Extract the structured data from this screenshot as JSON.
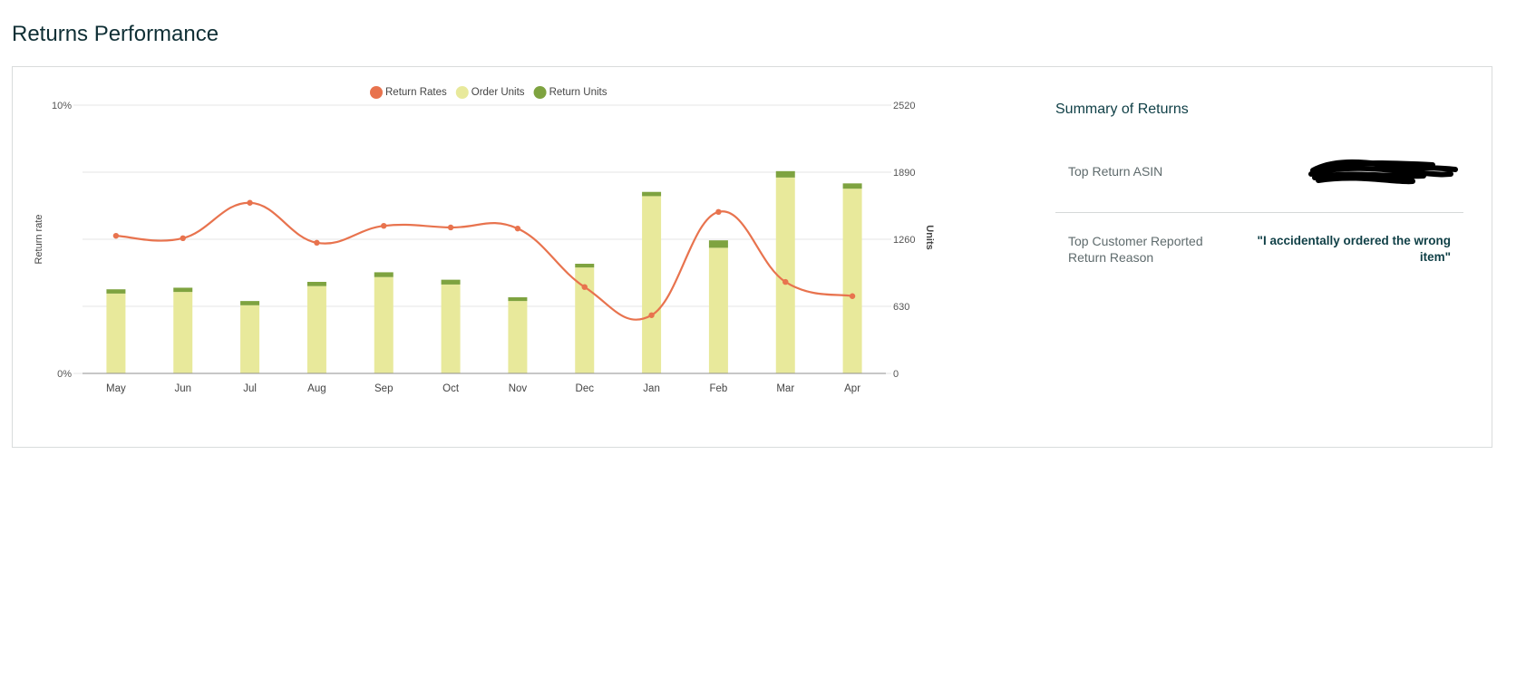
{
  "page": {
    "title": "Returns Performance"
  },
  "summary": {
    "title": "Summary of Returns",
    "rows": [
      {
        "label": "Top Return ASIN",
        "value": ""
      },
      {
        "label": "Top Customer Reported Return Reason",
        "value": "\"I accidentally ordered the wrong item\""
      }
    ]
  },
  "colors": {
    "return_rate": "#e8734e",
    "order_units": "#e8e99b",
    "return_units": "#7ea340",
    "grid": "#e6e6e6",
    "axis": "#8f8f8f"
  },
  "chart_data": {
    "type": "bar",
    "categories": [
      "May",
      "Jun",
      "Jul",
      "Aug",
      "Sep",
      "Oct",
      "Nov",
      "Dec",
      "Jan",
      "Feb",
      "Mar",
      "Apr"
    ],
    "series": [
      {
        "name": "Order Units",
        "kind": "bar",
        "axis": "right",
        "values": [
          750,
          765,
          640,
          820,
          905,
          835,
          680,
          995,
          1665,
          1180,
          1840,
          1735
        ]
      },
      {
        "name": "Return Units",
        "kind": "bar-stack",
        "axis": "right",
        "values": [
          40,
          40,
          40,
          40,
          45,
          45,
          35,
          35,
          40,
          70,
          60,
          50
        ]
      },
      {
        "name": "Return Rates",
        "kind": "line",
        "axis": "left",
        "values": [
          5.13,
          5.04,
          6.36,
          4.87,
          5.5,
          5.44,
          5.4,
          3.22,
          2.17,
          6.02,
          3.41,
          2.88
        ]
      }
    ],
    "legend": [
      "Return Rates",
      "Order Units",
      "Return Units"
    ],
    "legend_position": "top-center",
    "y_left": {
      "label": "Return rate",
      "ticks": [
        "0%",
        "10%"
      ],
      "range": [
        0,
        10
      ]
    },
    "y_right": {
      "label": "Units",
      "ticks": [
        "0",
        "630",
        "1260",
        "1890",
        "2520"
      ],
      "range": [
        0,
        2520
      ]
    },
    "grid": true
  }
}
